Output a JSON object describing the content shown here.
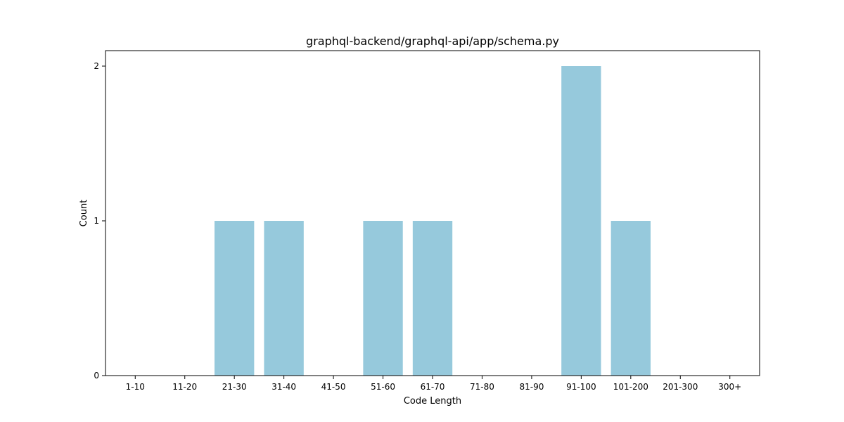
{
  "chart_data": {
    "type": "bar",
    "title": "graphql-backend/graphql-api/app/schema.py",
    "xlabel": "Code Length",
    "ylabel": "Count",
    "categories": [
      "1-10",
      "11-20",
      "21-30",
      "31-40",
      "41-50",
      "51-60",
      "61-70",
      "71-80",
      "81-90",
      "91-100",
      "101-200",
      "201-300",
      "300+"
    ],
    "values": [
      0,
      0,
      1,
      1,
      0,
      1,
      1,
      0,
      0,
      2,
      1,
      0,
      0
    ],
    "ylim": [
      0,
      2.1
    ],
    "yticks": [
      0,
      1,
      2
    ],
    "bar_color": "#96c9dc",
    "grid": false
  }
}
